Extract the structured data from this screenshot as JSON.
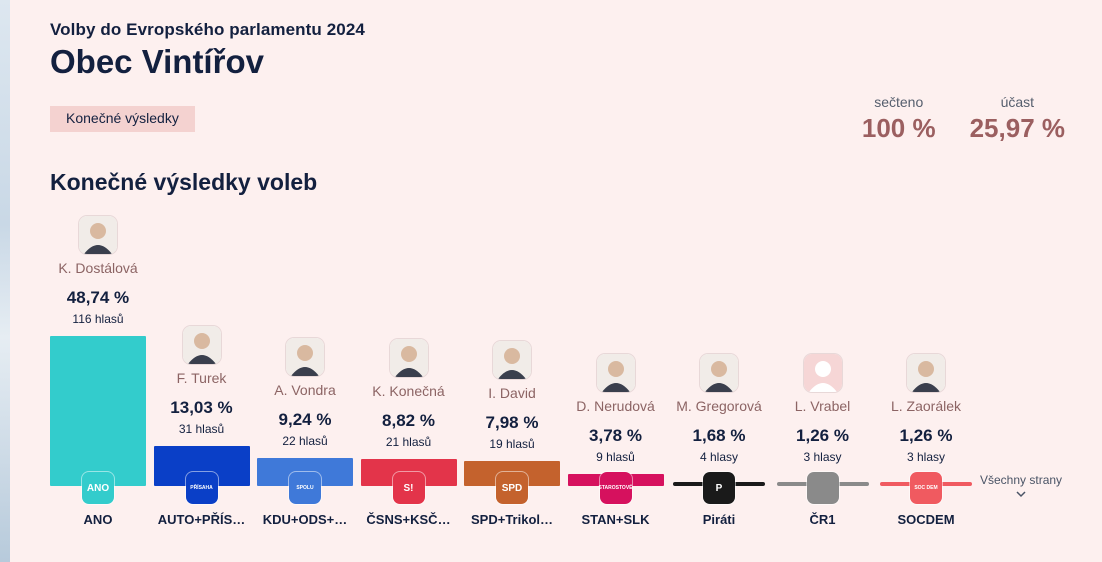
{
  "header": {
    "subtitle": "Volby do Evropského parlamentu 2024",
    "title": "Obec Vintířov",
    "badge": "Konečné výsledky"
  },
  "stats": {
    "counted_label": "sečteno",
    "counted_value": "100 %",
    "turnout_label": "účast",
    "turnout_value": "25,97 %"
  },
  "section_title": "Konečné výsledky voleb",
  "all_parties_label": "Všechny strany",
  "chart_data": {
    "type": "bar",
    "categories": [
      "ANO",
      "AUTO+PŘÍS…",
      "KDU+ODS+…",
      "ČSNS+KSČ…",
      "SPD+Trikol…",
      "STAN+SLK",
      "Piráti",
      "ČR1",
      "SOCDEM"
    ],
    "series": [
      {
        "values": [
          48.74,
          13.03,
          9.24,
          8.82,
          7.98,
          3.78,
          1.68,
          1.26,
          1.26
        ]
      }
    ],
    "pct_labels": [
      "48,74 %",
      "13,03 %",
      "9,24 %",
      "8,82 %",
      "7,98 %",
      "3,78 %",
      "1,68 %",
      "1,26 %",
      "1,26 %"
    ],
    "vote_labels": [
      "116 hlasů",
      "31 hlasů",
      "22 hlasů",
      "21 hlasů",
      "19 hlasů",
      "9 hlasů",
      "4 hlasy",
      "3 hlasy",
      "3 hlasy"
    ],
    "candidates": [
      "K. Dostálová",
      "F. Turek",
      "A. Vondra",
      "K. Konečná",
      "I. David",
      "D. Nerudová",
      "M. Gregorová",
      "L. Vrabel",
      "L. Zaorálek"
    ],
    "colors": [
      "#33cccc",
      "#0a3fc7",
      "#3f79d9",
      "#e3344a",
      "#c4622d",
      "#d6115e",
      "#1a1a1a",
      "#8a8a8a",
      "#f05a60"
    ],
    "logos": [
      "ANO",
      "PŘÍSAHA",
      "SPOLU",
      "S!",
      "SPD",
      "STAROSTOVÉ",
      "P",
      "",
      "SOC DEM"
    ],
    "ylim": [
      0,
      48.74
    ]
  }
}
